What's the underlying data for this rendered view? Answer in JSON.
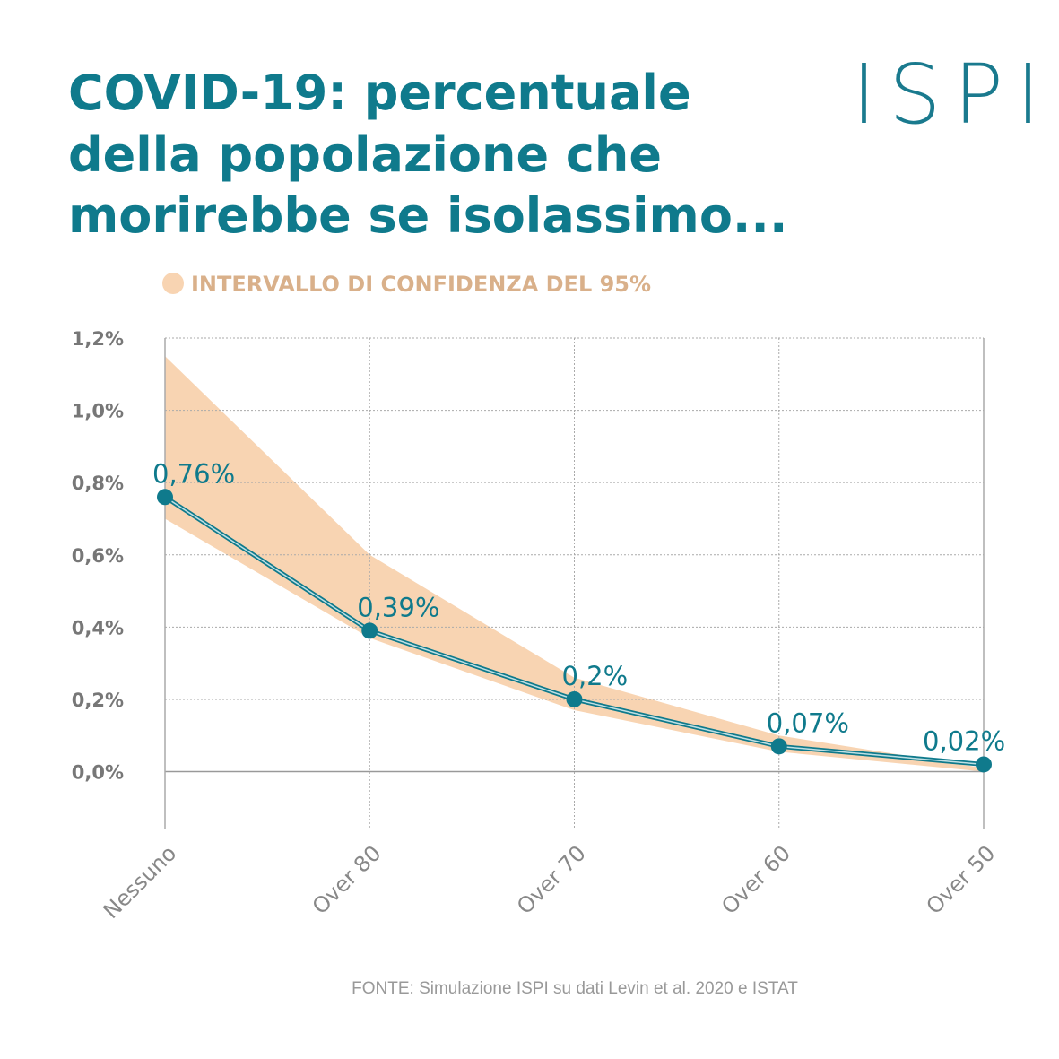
{
  "chart_data": {
    "type": "line",
    "title_lines": [
      "COVID-19: percentuale",
      "della popolazione che",
      "morirebbe se isolassimo..."
    ],
    "logo": "ISPI",
    "source": "FONTE: Simulazione ISPI su dati Levin et al. 2020 e ISTAT",
    "categories": [
      "Nessuno",
      "Over 80",
      "Over 70",
      "Over 60",
      "Over 50"
    ],
    "series": [
      {
        "name": "Percentuale",
        "color": "#0f7a8c",
        "values": [
          0.76,
          0.39,
          0.2,
          0.07,
          0.02
        ],
        "value_labels": [
          "0,76%",
          "0,39%",
          "0,2%",
          "0,07%",
          "0,02%"
        ]
      }
    ],
    "band": {
      "name": "INTERVALLO DI CONFIDENZA DEL 95%",
      "color": "#f8d4b2",
      "upper": [
        1.15,
        0.6,
        0.26,
        0.1,
        0.01
      ],
      "lower": [
        0.7,
        0.37,
        0.17,
        0.055,
        0.0
      ]
    },
    "ylim": [
      -0.16,
      1.2
    ],
    "yticks": [
      {
        "value": 0,
        "label": "0,0%"
      },
      {
        "value": 0.2,
        "label": "0,2%"
      },
      {
        "value": 0.4,
        "label": "0,4%"
      },
      {
        "value": 0.6,
        "label": "0,6%"
      },
      {
        "value": 0.8,
        "label": "0,8%"
      },
      {
        "value": 1.0,
        "label": "1,0%"
      },
      {
        "value": 1.2,
        "label": "1,2%"
      }
    ],
    "grid": true
  }
}
